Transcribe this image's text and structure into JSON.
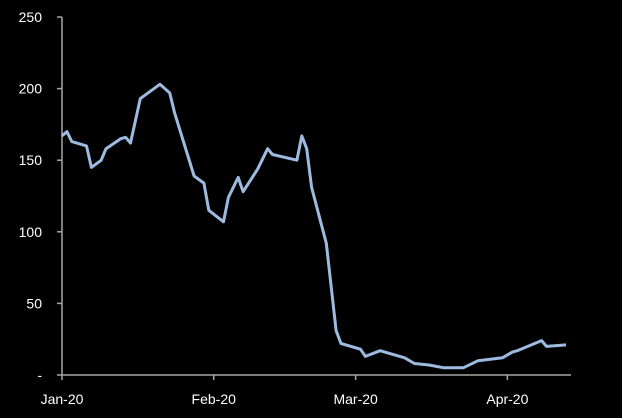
{
  "chart_data": {
    "type": "line",
    "title": "",
    "xlabel": "",
    "ylabel": "",
    "ylim": [
      0,
      250
    ],
    "yticks": [
      0,
      50,
      100,
      150,
      200,
      250
    ],
    "ytick_labels": [
      "-",
      "50",
      "100",
      "150",
      "200",
      "250"
    ],
    "xlim": [
      "2020-01-01",
      "2020-04-14"
    ],
    "xticks": [
      "2020-01-01",
      "2020-02-01",
      "2020-03-01",
      "2020-04-01"
    ],
    "xtick_labels": [
      "Jan-20",
      "Feb-20",
      "Mar-20",
      "Apr-20"
    ],
    "grid": false,
    "background": "#000000",
    "line_color": "#9dbbe0",
    "series": [
      {
        "x": [
          "2020-01-01",
          "2020-01-02",
          "2020-01-03",
          "2020-01-06",
          "2020-01-07",
          "2020-01-09",
          "2020-01-10",
          "2020-01-13",
          "2020-01-14",
          "2020-01-15",
          "2020-01-17",
          "2020-01-21",
          "2020-01-23",
          "2020-01-24",
          "2020-01-28",
          "2020-01-30",
          "2020-01-31",
          "2020-02-03",
          "2020-02-04",
          "2020-02-06",
          "2020-02-07",
          "2020-02-10",
          "2020-02-12",
          "2020-02-13",
          "2020-02-18",
          "2020-02-19",
          "2020-02-20",
          "2020-02-21",
          "2020-02-24",
          "2020-02-26",
          "2020-02-27",
          "2020-03-02",
          "2020-03-03",
          "2020-03-06",
          "2020-03-11",
          "2020-03-13",
          "2020-03-16",
          "2020-03-19",
          "2020-03-23",
          "2020-03-26",
          "2020-03-31",
          "2020-04-02",
          "2020-04-03",
          "2020-04-08",
          "2020-04-09",
          "2020-04-13"
        ],
        "values": [
          167,
          170,
          163,
          160,
          145,
          150,
          158,
          165,
          166,
          162,
          193,
          203,
          197,
          183,
          139,
          134,
          115,
          107,
          124,
          138,
          128,
          144,
          158,
          154,
          150,
          167,
          158,
          131,
          92,
          31,
          22,
          18,
          13,
          17,
          12,
          8,
          7,
          5,
          5,
          10,
          12,
          16,
          17,
          24,
          20,
          21
        ]
      }
    ]
  }
}
